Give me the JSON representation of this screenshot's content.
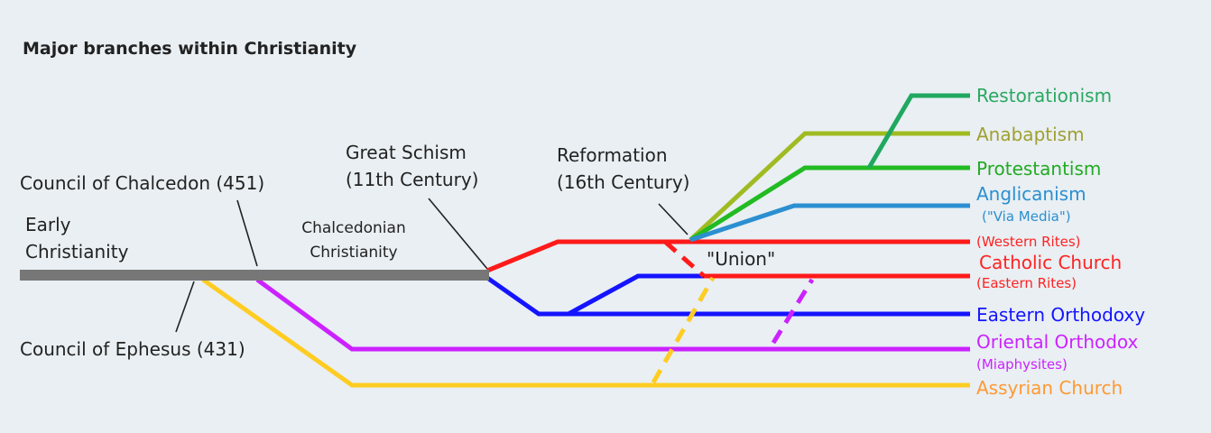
{
  "title": "Major branches within Christianity",
  "stages": {
    "early": [
      "Early",
      "Christianity"
    ],
    "chalcedonian": [
      "Chalcedonian",
      "Christianity"
    ]
  },
  "events": {
    "council_of_chalcedon": "Council of Chalcedon (451)",
    "council_of_ephesus": "Council of Ephesus (431)",
    "great_schism": [
      "Great Schism",
      "(11th Century)"
    ],
    "reformation": [
      "Reformation",
      "(16th Century)"
    ],
    "union": "\"Union\""
  },
  "branches": [
    {
      "label": "Restorationism"
    },
    {
      "label": "Anabaptism"
    },
    {
      "label": "Protestantism"
    },
    {
      "label": "Anglicanism",
      "note": "(\"Via Media\")"
    },
    {
      "label": "Catholic Church",
      "note_above": "(Western Rites)",
      "note_below": "(Eastern Rites)"
    },
    {
      "label": "Eastern Orthodoxy"
    },
    {
      "label": "Oriental Orthodox",
      "note": "(Miaphysites)"
    },
    {
      "label": "Assyrian Church"
    }
  ]
}
